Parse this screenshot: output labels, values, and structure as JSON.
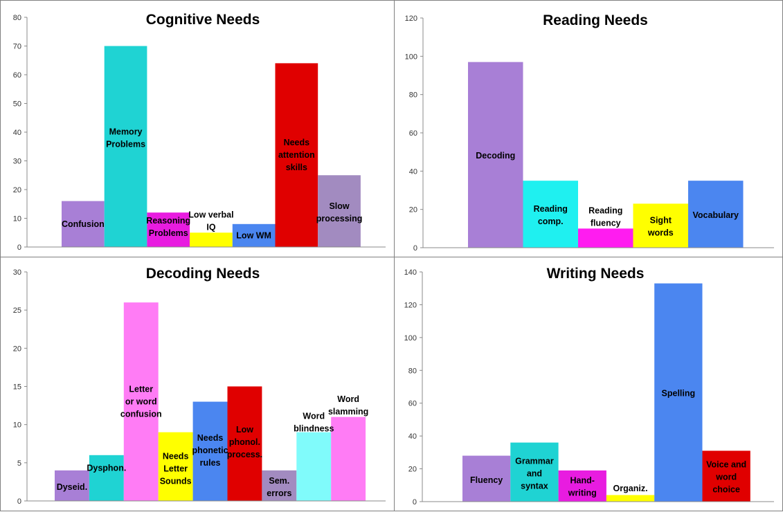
{
  "chart_data": [
    {
      "type": "bar",
      "title": "Cognitive Needs",
      "ylim": [
        0,
        80
      ],
      "yticks": [
        0,
        10,
        20,
        30,
        40,
        50,
        60,
        70,
        80
      ],
      "grid": false,
      "legend": "none",
      "bars": [
        {
          "label": "Confusion",
          "value": 16,
          "color": "#a87fd6",
          "label_lines": [
            "Confusion"
          ],
          "label_y": 8
        },
        {
          "label": "Memory Problems",
          "value": 70,
          "color": "#1fd3d3",
          "label_lines": [
            "Memory",
            "Problems"
          ],
          "label_y": 38
        },
        {
          "label": "Reasoning Problems",
          "value": 12,
          "color": "#e81ce0",
          "label_lines": [
            "Reasoning",
            "Problems"
          ],
          "label_y": 7
        },
        {
          "label": "Low verbal IQ",
          "value": 5,
          "color": "#ffff00",
          "label_lines": [
            "Low verbal",
            "IQ"
          ],
          "label_y": 9
        },
        {
          "label": "Low WM",
          "value": 8,
          "color": "#4b86f0",
          "label_lines": [
            "Low WM"
          ],
          "label_y": 4
        },
        {
          "label": "Needs attention skills",
          "value": 64,
          "color": "#e00000",
          "label_lines": [
            "Needs",
            "attention",
            "skills"
          ],
          "label_y": 32
        },
        {
          "label": "Slow processing",
          "value": 25,
          "color": "#a28bc0",
          "label_lines": [
            "Slow",
            "processing"
          ],
          "label_y": 12
        }
      ]
    },
    {
      "type": "bar",
      "title": "Reading Needs",
      "ylim": [
        0,
        120
      ],
      "yticks": [
        0,
        20,
        40,
        60,
        80,
        100,
        120
      ],
      "grid": false,
      "legend": "none",
      "bars": [
        {
          "label": "Decoding",
          "value": 97,
          "color": "#a87fd6",
          "label_lines": [
            "Decoding"
          ],
          "label_y": 48
        },
        {
          "label": "Reading comp.",
          "value": 35,
          "color": "#1ff0f0",
          "label_lines": [
            "Reading",
            "comp."
          ],
          "label_y": 17
        },
        {
          "label": "Reading fluency",
          "value": 10,
          "color": "#ff1cf0",
          "label_lines": [
            "Reading",
            "fluency"
          ],
          "label_y": 16
        },
        {
          "label": "Sight words",
          "value": 23,
          "color": "#ffff00",
          "label_lines": [
            "Sight",
            "words"
          ],
          "label_y": 11
        },
        {
          "label": "Vocabulary",
          "value": 35,
          "color": "#4b86f0",
          "label_lines": [
            "Vocabulary"
          ],
          "label_y": 17
        }
      ]
    },
    {
      "type": "bar",
      "title": "Decoding Needs",
      "ylim": [
        0,
        30
      ],
      "yticks": [
        0,
        5,
        10,
        15,
        20,
        25,
        30
      ],
      "grid": false,
      "legend": "none",
      "bars": [
        {
          "label": "Dyseid.",
          "value": 4,
          "color": "#a87fd6",
          "label_lines": [
            "Dyseid."
          ],
          "label_y": 1.8
        },
        {
          "label": "Dysphon.",
          "value": 6,
          "color": "#1fd3d3",
          "label_lines": [
            "Dysphon."
          ],
          "label_y": 4.3
        },
        {
          "label": "Letter or word confusion",
          "value": 26,
          "color": "#ff7cf5",
          "label_lines": [
            "Letter",
            "or word",
            "confusion"
          ],
          "label_y": 13
        },
        {
          "label": "Needs Letter Sounds",
          "value": 9,
          "color": "#ffff00",
          "label_lines": [
            "Needs",
            "Letter",
            "Sounds"
          ],
          "label_y": 4.2
        },
        {
          "label": "Needs phonetic rules",
          "value": 13,
          "color": "#4b86f0",
          "label_lines": [
            "Needs",
            "phonetic",
            "rules"
          ],
          "label_y": 6.6
        },
        {
          "label": "Low phonol. process.",
          "value": 15,
          "color": "#e00000",
          "label_lines": [
            "Low",
            "phonol.",
            "process."
          ],
          "label_y": 7.7
        },
        {
          "label": "Sem. errors",
          "value": 4,
          "color": "#a28bc0",
          "label_lines": [
            "Sem.",
            "errors"
          ],
          "label_y": 1.8
        },
        {
          "label": "Word blindness",
          "value": 9,
          "color": "#80fbfb",
          "label_lines": [
            "Word",
            "blindness"
          ],
          "label_y": 10.3
        },
        {
          "label": "Word slamming",
          "value": 11,
          "color": "#ff7cf5",
          "label_lines": [
            "Word",
            "slamming"
          ],
          "label_y": 12.5
        }
      ]
    },
    {
      "type": "bar",
      "title": "Writing Needs",
      "ylim": [
        0,
        140
      ],
      "yticks": [
        0,
        20,
        40,
        60,
        80,
        100,
        120,
        140
      ],
      "grid": false,
      "legend": "none",
      "bars": [
        {
          "label": "Fluency",
          "value": 28,
          "color": "#a87fd6",
          "label_lines": [
            "Fluency"
          ],
          "label_y": 13
        },
        {
          "label": "Grammar and syntax",
          "value": 36,
          "color": "#1fd3d3",
          "label_lines": [
            "Grammar",
            "and",
            "syntax"
          ],
          "label_y": 17
        },
        {
          "label": "Hand-writing",
          "value": 19,
          "color": "#e81ce0",
          "label_lines": [
            "Hand-",
            "writing"
          ],
          "label_y": 9
        },
        {
          "label": "Organiz.",
          "value": 4,
          "color": "#ffff00",
          "label_lines": [
            "Organiz."
          ],
          "label_y": 8
        },
        {
          "label": "Spelling",
          "value": 133,
          "color": "#4b86f0",
          "label_lines": [
            "Spelling"
          ],
          "label_y": 66
        },
        {
          "label": "Voice and word choice",
          "value": 31,
          "color": "#e00000",
          "label_lines": [
            "Voice and",
            "word",
            "choice"
          ],
          "label_y": 15
        }
      ]
    }
  ]
}
